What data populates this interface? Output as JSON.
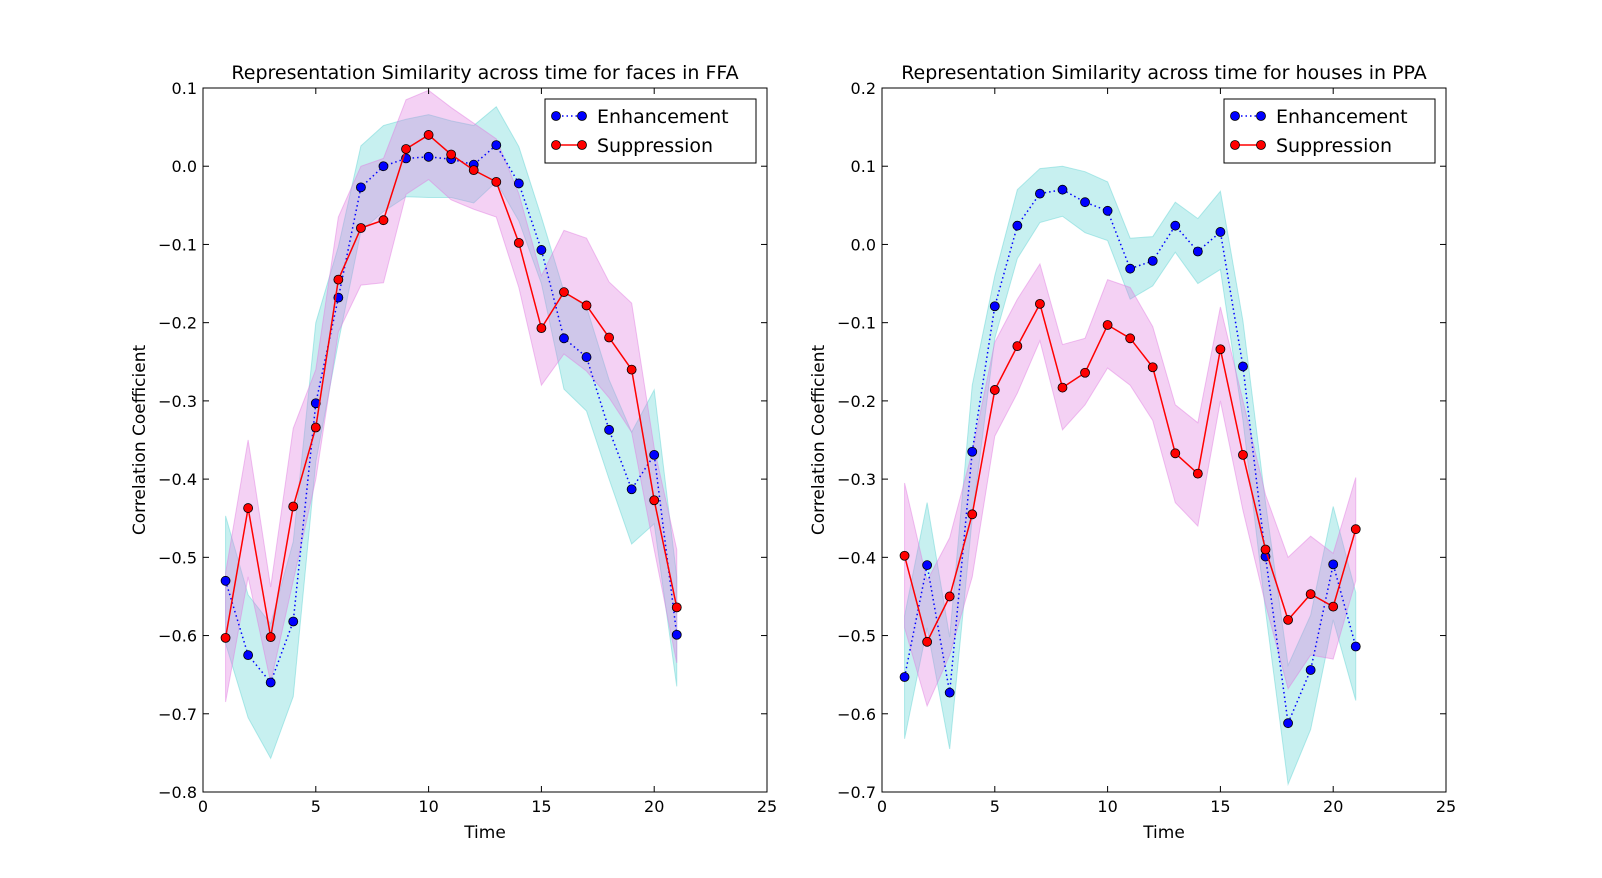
{
  "chart_data": [
    {
      "type": "line",
      "title": "Representation Similarity across time for faces in FFA",
      "xlabel": "Time",
      "ylabel": "Correlation Coefficient",
      "xlim": [
        0,
        25
      ],
      "ylim": [
        -0.8,
        0.1
      ],
      "xticks": [
        0,
        5,
        10,
        15,
        20,
        25
      ],
      "xtick_labels": [
        "0",
        "5",
        "10",
        "15",
        "20",
        "25"
      ],
      "yticks": [
        -0.8,
        -0.7,
        -0.6,
        -0.5,
        -0.4,
        -0.3,
        -0.2,
        -0.1,
        0.0,
        0.1
      ],
      "ytick_labels": [
        "−0.8",
        "−0.7",
        "−0.6",
        "−0.5",
        "−0.4",
        "−0.3",
        "−0.2",
        "−0.1",
        "0.0",
        "0.1"
      ],
      "legend": "top-right",
      "grid": false,
      "x": [
        1,
        2,
        3,
        4,
        5,
        6,
        7,
        8,
        9,
        10,
        11,
        12,
        13,
        14,
        15,
        16,
        17,
        18,
        19,
        20,
        21
      ],
      "series": [
        {
          "name": "Enhancement",
          "color": "#0000ff",
          "band_color": "#5fd3d3",
          "style": "dotted-markers",
          "values": [
            -0.53,
            -0.625,
            -0.66,
            -0.582,
            -0.303,
            -0.168,
            -0.027,
            0.0,
            0.01,
            0.012,
            0.009,
            0.002,
            0.027,
            -0.022,
            -0.107,
            -0.22,
            -0.244,
            -0.337,
            -0.413,
            -0.369,
            -0.599
          ],
          "lower": [
            -0.61,
            -0.705,
            -0.757,
            -0.678,
            -0.378,
            -0.225,
            -0.083,
            -0.058,
            -0.039,
            -0.04,
            -0.04,
            -0.047,
            -0.02,
            -0.07,
            -0.15,
            -0.285,
            -0.313,
            -0.4,
            -0.483,
            -0.457,
            -0.665
          ],
          "upper": [
            -0.447,
            -0.548,
            -0.585,
            -0.48,
            -0.2,
            -0.103,
            0.026,
            0.052,
            0.06,
            0.066,
            0.058,
            0.052,
            0.076,
            0.025,
            -0.065,
            -0.16,
            -0.18,
            -0.273,
            -0.34,
            -0.286,
            -0.525
          ]
        },
        {
          "name": "Suppression",
          "color": "#ff0000",
          "band_color": "#e07be0",
          "style": "solid-markers",
          "values": [
            -0.603,
            -0.437,
            -0.602,
            -0.435,
            -0.334,
            -0.145,
            -0.079,
            -0.069,
            0.022,
            0.04,
            0.015,
            -0.005,
            -0.02,
            -0.098,
            -0.207,
            -0.161,
            -0.178,
            -0.219,
            -0.26,
            -0.427,
            -0.564
          ],
          "lower": [
            -0.685,
            -0.525,
            -0.66,
            -0.53,
            -0.4,
            -0.212,
            -0.152,
            -0.149,
            -0.036,
            -0.017,
            -0.043,
            -0.055,
            -0.065,
            -0.155,
            -0.28,
            -0.24,
            -0.262,
            -0.296,
            -0.34,
            -0.49,
            -0.635
          ],
          "upper": [
            -0.52,
            -0.35,
            -0.538,
            -0.335,
            -0.26,
            -0.065,
            0.0,
            0.01,
            0.085,
            0.097,
            0.075,
            0.055,
            0.035,
            -0.035,
            -0.14,
            -0.082,
            -0.092,
            -0.148,
            -0.175,
            -0.36,
            -0.49
          ]
        }
      ]
    },
    {
      "type": "line",
      "title": "Representation Similarity across time for houses in PPA",
      "xlabel": "Time",
      "ylabel": "Correlation Coefficient",
      "xlim": [
        0,
        25
      ],
      "ylim": [
        -0.7,
        0.2
      ],
      "xticks": [
        0,
        5,
        10,
        15,
        20,
        25
      ],
      "xtick_labels": [
        "0",
        "5",
        "10",
        "15",
        "20",
        "25"
      ],
      "yticks": [
        -0.7,
        -0.6,
        -0.5,
        -0.4,
        -0.3,
        -0.2,
        -0.1,
        0.0,
        0.1,
        0.2
      ],
      "ytick_labels": [
        "−0.7",
        "−0.6",
        "−0.5",
        "−0.4",
        "−0.3",
        "−0.2",
        "−0.1",
        "0.0",
        "0.1",
        "0.2"
      ],
      "legend": "top-right",
      "grid": false,
      "x": [
        1,
        2,
        3,
        4,
        5,
        6,
        7,
        8,
        9,
        10,
        11,
        12,
        13,
        14,
        15,
        16,
        17,
        18,
        19,
        20,
        21
      ],
      "series": [
        {
          "name": "Enhancement",
          "color": "#0000ff",
          "band_color": "#5fd3d3",
          "style": "dotted-markers",
          "values": [
            -0.553,
            -0.41,
            -0.573,
            -0.265,
            -0.079,
            0.024,
            0.065,
            0.07,
            0.054,
            0.043,
            -0.031,
            -0.021,
            0.024,
            -0.009,
            0.016,
            -0.156,
            -0.399,
            -0.612,
            -0.544,
            -0.409,
            -0.514
          ],
          "lower": [
            -0.632,
            -0.49,
            -0.645,
            -0.35,
            -0.12,
            -0.018,
            0.028,
            0.036,
            0.015,
            0.005,
            -0.07,
            -0.053,
            -0.01,
            -0.05,
            -0.032,
            -0.225,
            -0.468,
            -0.69,
            -0.62,
            -0.48,
            -0.583
          ],
          "upper": [
            -0.475,
            -0.33,
            -0.502,
            -0.18,
            -0.04,
            0.07,
            0.097,
            0.1,
            0.093,
            0.08,
            0.008,
            0.01,
            0.054,
            0.033,
            0.068,
            -0.098,
            -0.33,
            -0.538,
            -0.474,
            -0.335,
            -0.445
          ]
        },
        {
          "name": "Suppression",
          "color": "#ff0000",
          "band_color": "#e07be0",
          "style": "solid-markers",
          "values": [
            -0.398,
            -0.508,
            -0.45,
            -0.345,
            -0.186,
            -0.13,
            -0.076,
            -0.183,
            -0.164,
            -0.103,
            -0.12,
            -0.157,
            -0.267,
            -0.293,
            -0.134,
            -0.269,
            -0.39,
            -0.48,
            -0.447,
            -0.463,
            -0.364
          ],
          "lower": [
            -0.49,
            -0.59,
            -0.525,
            -0.425,
            -0.245,
            -0.19,
            -0.123,
            -0.237,
            -0.205,
            -0.158,
            -0.18,
            -0.225,
            -0.33,
            -0.36,
            -0.2,
            -0.34,
            -0.46,
            -0.568,
            -0.525,
            -0.53,
            -0.43
          ],
          "upper": [
            -0.305,
            -0.43,
            -0.375,
            -0.265,
            -0.125,
            -0.07,
            -0.025,
            -0.128,
            -0.12,
            -0.045,
            -0.055,
            -0.105,
            -0.205,
            -0.228,
            -0.08,
            -0.2,
            -0.32,
            -0.4,
            -0.373,
            -0.395,
            -0.298
          ]
        }
      ]
    }
  ]
}
